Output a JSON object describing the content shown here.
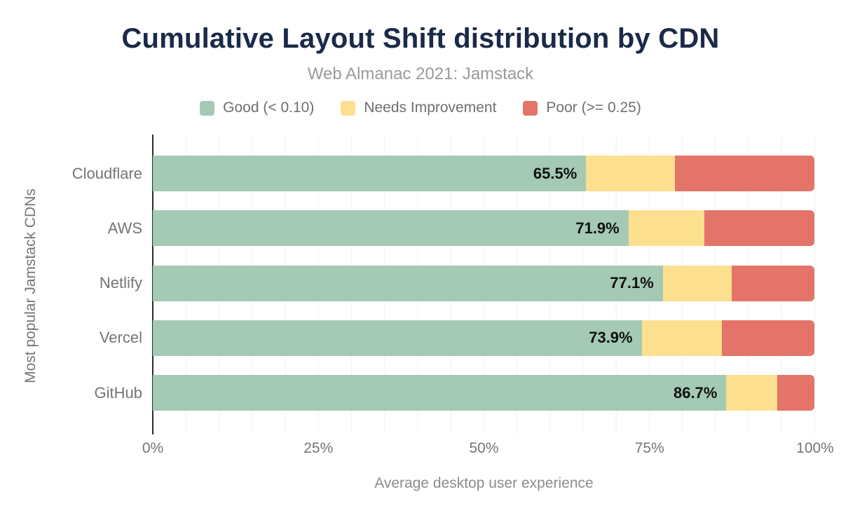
{
  "title": "Cumulative Layout Shift distribution by CDN",
  "subtitle": "Web Almanac 2021: Jamstack",
  "legend": [
    {
      "label": "Good (< 0.10)",
      "color": "#a4c9b4"
    },
    {
      "label": "Needs Improvement",
      "color": "#fce08f"
    },
    {
      "label": "Poor (>= 0.25)",
      "color": "#e4746a"
    }
  ],
  "chart_data": {
    "type": "bar",
    "orientation": "horizontal",
    "stacked": true,
    "title": "Cumulative Layout Shift distribution by CDN",
    "subtitle": "Web Almanac 2021: Jamstack",
    "categories": [
      "Cloudflare",
      "AWS",
      "Netlify",
      "Vercel",
      "GitHub"
    ],
    "series": [
      {
        "name": "Good (< 0.10)",
        "slug": "good",
        "color": "#a4c9b4",
        "values": [
          65.5,
          71.9,
          77.1,
          73.9,
          86.7
        ],
        "labels": [
          "65.5%",
          "71.9%",
          "77.1%",
          "73.9%",
          "86.7%"
        ]
      },
      {
        "name": "Needs Improvement",
        "slug": "needs-improvement",
        "color": "#fce08f",
        "values": [
          13.4,
          11.5,
          10.4,
          12.1,
          7.7
        ]
      },
      {
        "name": "Poor (>= 0.25)",
        "slug": "poor",
        "color": "#e4746a",
        "values": [
          21.1,
          16.6,
          12.5,
          14.0,
          5.6
        ]
      }
    ],
    "xlabel": "Average desktop user experience",
    "ylabel": "Most popular Jamstack CDNs",
    "x_ticks": [
      "0%",
      "25%",
      "50%",
      "75%",
      "100%"
    ],
    "xlim": [
      0,
      100
    ],
    "grid": "vertical gridlines every 5%",
    "legend_position": "top"
  },
  "colors": {
    "title": "#1b2a49",
    "muted_text": "#757575",
    "bar_label": "#111111",
    "gridline": "#f1f1f1",
    "axis_line": "#2b2b2b",
    "background": "#ffffff"
  }
}
